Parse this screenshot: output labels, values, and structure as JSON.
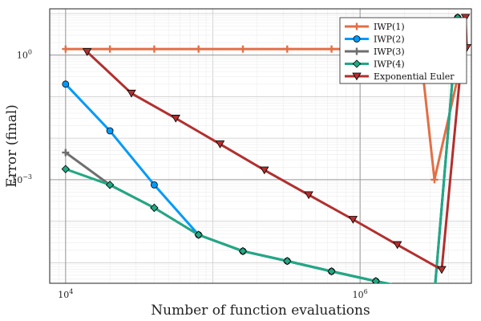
{
  "chart_data": {
    "type": "line",
    "xlabel": "Number of function evaluations",
    "ylabel": "Error (final)",
    "xscale": "log",
    "yscale": "log",
    "xlim": [
      7800,
      5700000
    ],
    "ylim": [
      3.2e-06,
      13
    ],
    "x_ticks": [
      {
        "value": 10000,
        "base": "10",
        "exp": "4"
      },
      {
        "value": 1000000,
        "base": "10",
        "exp": "6"
      }
    ],
    "y_ticks": [
      {
        "value": 0.001,
        "base": "10",
        "exp": "−3"
      },
      {
        "value": 1,
        "base": "10",
        "exp": "0"
      }
    ],
    "grid": true,
    "legend_position": "top-right",
    "series": [
      {
        "name": "IWP(1)",
        "color": "#e26f46",
        "marker": "cross",
        "points": [
          [
            10000,
            1.4
          ],
          [
            20000,
            1.4
          ],
          [
            40000,
            1.4
          ],
          [
            80000,
            1.4
          ],
          [
            160000,
            1.4
          ],
          [
            320000,
            1.4
          ],
          [
            640000,
            1.4
          ],
          [
            1280000,
            1.4
          ],
          [
            2560000,
            1.4
          ],
          [
            3200000,
            0.001
          ],
          [
            5100000,
            1.4
          ]
        ]
      },
      {
        "name": "IWP(2)",
        "color": "#009af9",
        "marker": "circle",
        "points": [
          [
            10000,
            0.2
          ],
          [
            20000,
            0.015
          ],
          [
            40000,
            0.00075
          ],
          [
            80000,
            4.7e-05
          ],
          [
            160000,
            1.9e-05
          ],
          [
            320000,
            1.1e-05
          ],
          [
            640000,
            6.2e-06
          ],
          [
            1280000,
            3.6e-06
          ],
          [
            3200000,
            1.85e-06
          ],
          [
            4600000,
            8
          ]
        ]
      },
      {
        "name": "IWP(3)",
        "color": "#6e6e6e",
        "marker": "cross",
        "points": [
          [
            10000,
            0.0045
          ],
          [
            20000,
            0.00075
          ],
          [
            40000,
            0.00021
          ],
          [
            80000,
            4.7e-05
          ],
          [
            160000,
            1.9e-05
          ],
          [
            320000,
            1.1e-05
          ],
          [
            640000,
            6.2e-06
          ],
          [
            1280000,
            3.6e-06
          ],
          [
            3200000,
            1.85e-06
          ],
          [
            4600000,
            8
          ]
        ]
      },
      {
        "name": "IWP(4)",
        "color": "#22a884",
        "marker": "diamond",
        "points": [
          [
            10000,
            0.0018
          ],
          [
            20000,
            0.00075
          ],
          [
            40000,
            0.00021
          ],
          [
            80000,
            4.7e-05
          ],
          [
            160000,
            1.9e-05
          ],
          [
            320000,
            1.1e-05
          ],
          [
            640000,
            6.2e-06
          ],
          [
            1280000,
            3.6e-06
          ],
          [
            3200000,
            1.85e-06
          ],
          [
            4600000,
            8
          ]
        ]
      },
      {
        "name": "Exponential Euler",
        "color": "#b22f2e",
        "marker": "triangle-down",
        "points": [
          [
            14000,
            1.2
          ],
          [
            28000,
            0.12
          ],
          [
            56000,
            0.03
          ],
          [
            112000,
            0.0072
          ],
          [
            224000,
            0.0017
          ],
          [
            448000,
            0.00043
          ],
          [
            896000,
            0.00011
          ],
          [
            1792000,
            2.7e-05
          ],
          [
            3584000,
            6.8e-06
          ],
          [
            5200000,
            8
          ],
          [
            5300000,
            1.5
          ]
        ]
      }
    ]
  }
}
